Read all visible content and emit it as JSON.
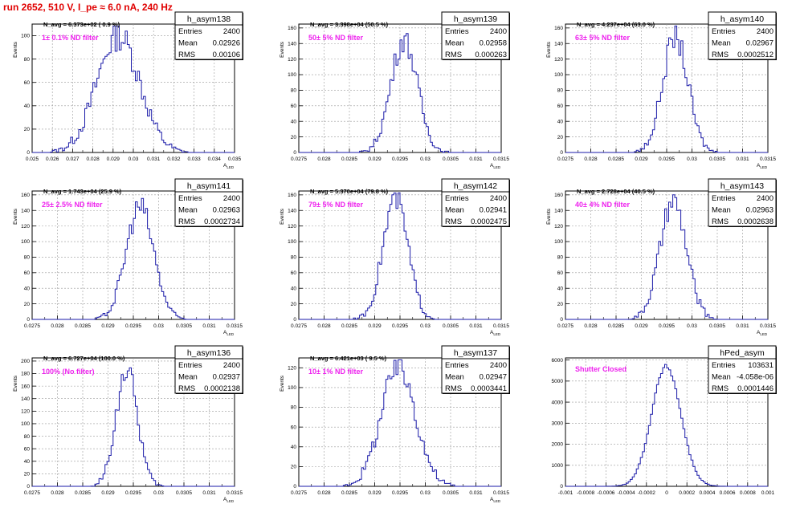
{
  "header": {
    "title": "run 2652,   510 V, I_pe ≈ 6.0 nA, 240 Hz"
  },
  "colors": {
    "histogram": "#1a1aa8",
    "annotation": "#ee22ee",
    "title": "#e00000",
    "grid": "#999999"
  },
  "chart_data": [
    {
      "type": "bar",
      "name": "h_asym138",
      "stats": {
        "Entries": "2400",
        "Mean": "0.02926",
        "RMS": "0.00106"
      },
      "navg": "N_avg = 6.373e+02 ( 0.9 %)",
      "label": "1± 0.1% ND filter",
      "xlabel": "A_LED",
      "ylabel": "Events",
      "xlim": [
        0.025,
        0.035
      ],
      "ylim": [
        0,
        110
      ],
      "xticks": [
        "0.025",
        "0.026",
        "0.027",
        "0.028",
        "0.029",
        "0.03",
        "0.031",
        "0.032",
        "0.033",
        "0.034",
        "0.035"
      ],
      "yticks": [
        "0",
        "20",
        "40",
        "60",
        "80",
        "100"
      ],
      "mean": 0.02926,
      "rms": 0.00106,
      "peak": 100
    },
    {
      "type": "bar",
      "name": "h_asym139",
      "stats": {
        "Entries": "2400",
        "Mean": "0.02958",
        "RMS": "0.000263"
      },
      "navg": "N_avg = 3.398e+04 (50.5 %)",
      "label": "50± 5% ND filter",
      "xlabel": "A_LED",
      "ylabel": "Events",
      "xlim": [
        0.0275,
        0.0315
      ],
      "ylim": [
        0,
        165
      ],
      "xticks": [
        "0.0275",
        "0.028",
        "0.0285",
        "0.029",
        "0.0295",
        "0.03",
        "0.0305",
        "0.031",
        "0.0315"
      ],
      "yticks": [
        "0",
        "20",
        "40",
        "60",
        "80",
        "100",
        "120",
        "140",
        "160"
      ],
      "mean": 0.02958,
      "rms": 0.000263,
      "peak": 145
    },
    {
      "type": "bar",
      "name": "h_asym140",
      "stats": {
        "Entries": "2400",
        "Mean": "0.02967",
        "RMS": "0.0002512"
      },
      "navg": "N_avg = 4.237e+04 (63.0 %)",
      "label": "63± 5% ND filter",
      "xlabel": "A_LED",
      "ylabel": "Events",
      "xlim": [
        0.0275,
        0.0315
      ],
      "ylim": [
        0,
        165
      ],
      "xticks": [
        "0.0275",
        "0.028",
        "0.0285",
        "0.029",
        "0.0295",
        "0.03",
        "0.0305",
        "0.031",
        "0.0315"
      ],
      "yticks": [
        "0",
        "20",
        "40",
        "60",
        "80",
        "100",
        "120",
        "140",
        "160"
      ],
      "mean": 0.02967,
      "rms": 0.0002512,
      "peak": 148
    },
    {
      "type": "bar",
      "name": "h_asym141",
      "stats": {
        "Entries": "2400",
        "Mean": "0.02963",
        "RMS": "0.0002734"
      },
      "navg": "N_avg = 1.743e+04 (25.9 %)",
      "label": "25± 2.5% ND filter",
      "xlabel": "A_LED",
      "ylabel": "Events",
      "xlim": [
        0.0275,
        0.0315
      ],
      "ylim": [
        0,
        165
      ],
      "xticks": [
        "0.0275",
        "0.028",
        "0.0285",
        "0.029",
        "0.0295",
        "0.03",
        "0.0305",
        "0.031",
        "0.0315"
      ],
      "yticks": [
        "0",
        "20",
        "40",
        "60",
        "80",
        "100",
        "120",
        "140",
        "160"
      ],
      "mean": 0.02963,
      "rms": 0.0002734,
      "peak": 145
    },
    {
      "type": "bar",
      "name": "h_asym142",
      "stats": {
        "Entries": "2400",
        "Mean": "0.02941",
        "RMS": "0.0002475"
      },
      "navg": "N_avg = 5.370e+04 (79.8 %)",
      "label": "79± 5% ND filter",
      "xlabel": "A_LED",
      "ylabel": "Events",
      "xlim": [
        0.0275,
        0.0315
      ],
      "ylim": [
        0,
        165
      ],
      "xticks": [
        "0.0275",
        "0.028",
        "0.0285",
        "0.029",
        "0.0295",
        "0.03",
        "0.0305",
        "0.031",
        "0.0315"
      ],
      "yticks": [
        "0",
        "20",
        "40",
        "60",
        "80",
        "100",
        "120",
        "140",
        "160"
      ],
      "mean": 0.02941,
      "rms": 0.0002475,
      "peak": 155
    },
    {
      "type": "bar",
      "name": "h_asym143",
      "stats": {
        "Entries": "2400",
        "Mean": "0.02963",
        "RMS": "0.0002638"
      },
      "navg": "N_avg = 2.728e+04 (40.5 %)",
      "label": "40± 4% ND filter",
      "xlabel": "A_LED",
      "ylabel": "Events",
      "xlim": [
        0.0275,
        0.0315
      ],
      "ylim": [
        0,
        165
      ],
      "xticks": [
        "0.0275",
        "0.028",
        "0.0285",
        "0.029",
        "0.0295",
        "0.03",
        "0.0305",
        "0.031",
        "0.0315"
      ],
      "yticks": [
        "0",
        "20",
        "40",
        "60",
        "80",
        "100",
        "120",
        "140",
        "160"
      ],
      "mean": 0.02963,
      "rms": 0.0002638,
      "peak": 150
    },
    {
      "type": "bar",
      "name": "h_asym136",
      "stats": {
        "Entries": "2400",
        "Mean": "0.02937",
        "RMS": "0.0002138"
      },
      "navg": "N_avg = 6.727e+04 (100.0 %)",
      "label": "100% (No filter)",
      "xlabel": "A_LED",
      "ylabel": "Events",
      "xlim": [
        0.0275,
        0.0315
      ],
      "ylim": [
        0,
        205
      ],
      "xticks": [
        "0.0275",
        "0.028",
        "0.0285",
        "0.029",
        "0.0295",
        "0.03",
        "0.0305",
        "0.031",
        "0.0315"
      ],
      "yticks": [
        "0",
        "20",
        "40",
        "60",
        "80",
        "100",
        "120",
        "140",
        "160",
        "180",
        "200"
      ],
      "mean": 0.02937,
      "rms": 0.0002138,
      "peak": 185
    },
    {
      "type": "bar",
      "name": "h_asym137",
      "stats": {
        "Entries": "2400",
        "Mean": "0.02947",
        "RMS": "0.0003441"
      },
      "navg": "N_avg = 6.421e+03 ( 9.5 %)",
      "label": "10± 1% ND filter",
      "xlabel": "A_LED",
      "ylabel": "Events",
      "xlim": [
        0.0275,
        0.0315
      ],
      "ylim": [
        0,
        130
      ],
      "xticks": [
        "0.0275",
        "0.028",
        "0.0285",
        "0.029",
        "0.0295",
        "0.03",
        "0.0305",
        "0.031",
        "0.0315"
      ],
      "yticks": [
        "0",
        "20",
        "40",
        "60",
        "80",
        "100",
        "120"
      ],
      "mean": 0.02947,
      "rms": 0.0003441,
      "peak": 120
    },
    {
      "type": "bar",
      "name": "hPed_asym",
      "stats": {
        "Entries": "103631",
        "Mean": "-4.058e-06",
        "RMS": "0.0001446"
      },
      "navg": "",
      "label": "Shutter Closed",
      "xlabel": "",
      "ylabel": "",
      "xlim": [
        -0.001,
        0.001
      ],
      "ylim": [
        0,
        6100
      ],
      "xticks": [
        "-0.001",
        "-0.0008",
        "-0.0006",
        "-0.0004",
        "-0.0002",
        "0",
        "0.0002",
        "0.0004",
        "0.0006",
        "0.0008",
        "0.001"
      ],
      "yticks": [
        "0",
        "1000",
        "2000",
        "3000",
        "4000",
        "5000",
        "6000"
      ],
      "mean": -4.058e-06,
      "rms": 0.0001446,
      "peak": 5700
    }
  ]
}
